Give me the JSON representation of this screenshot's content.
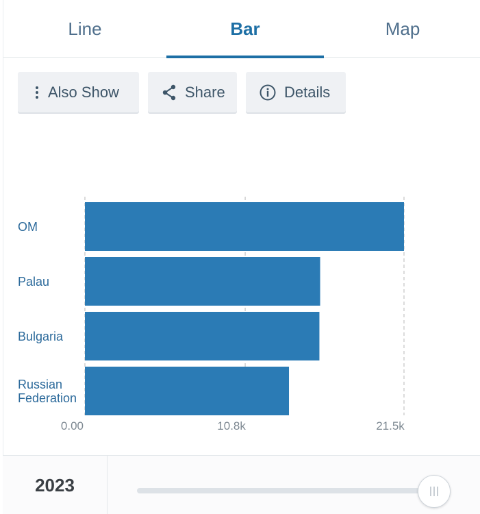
{
  "tabs": [
    {
      "label": "Line",
      "active": false
    },
    {
      "label": "Bar",
      "active": true
    },
    {
      "label": "Map",
      "active": false
    }
  ],
  "actions": {
    "also_show": "Also Show",
    "share": "Share",
    "details": "Details"
  },
  "chart_data": {
    "type": "bar",
    "orientation": "horizontal",
    "categories": [
      "OM",
      "Palau",
      "Bulgaria",
      "Russian Federation"
    ],
    "category_lines": [
      [
        "OM"
      ],
      [
        "Palau"
      ],
      [
        "Bulgaria"
      ],
      [
        "Russian",
        "Federation"
      ]
    ],
    "values": [
      21500,
      15850,
      15800,
      13750
    ],
    "xlim": [
      0,
      21500
    ],
    "xticks": [
      0,
      10800,
      21500
    ],
    "xtick_labels": [
      "0.00",
      "10.8k",
      "21.5k"
    ],
    "title": "",
    "xlabel": "",
    "ylabel": "",
    "grid": true,
    "bar_color": "#2b7bb5"
  },
  "footer": {
    "year": "2023",
    "slider_position": 1.0
  },
  "colors": {
    "accent": "#1d6fa5",
    "bar": "#2b7bb5",
    "label": "#2c6a9b"
  }
}
